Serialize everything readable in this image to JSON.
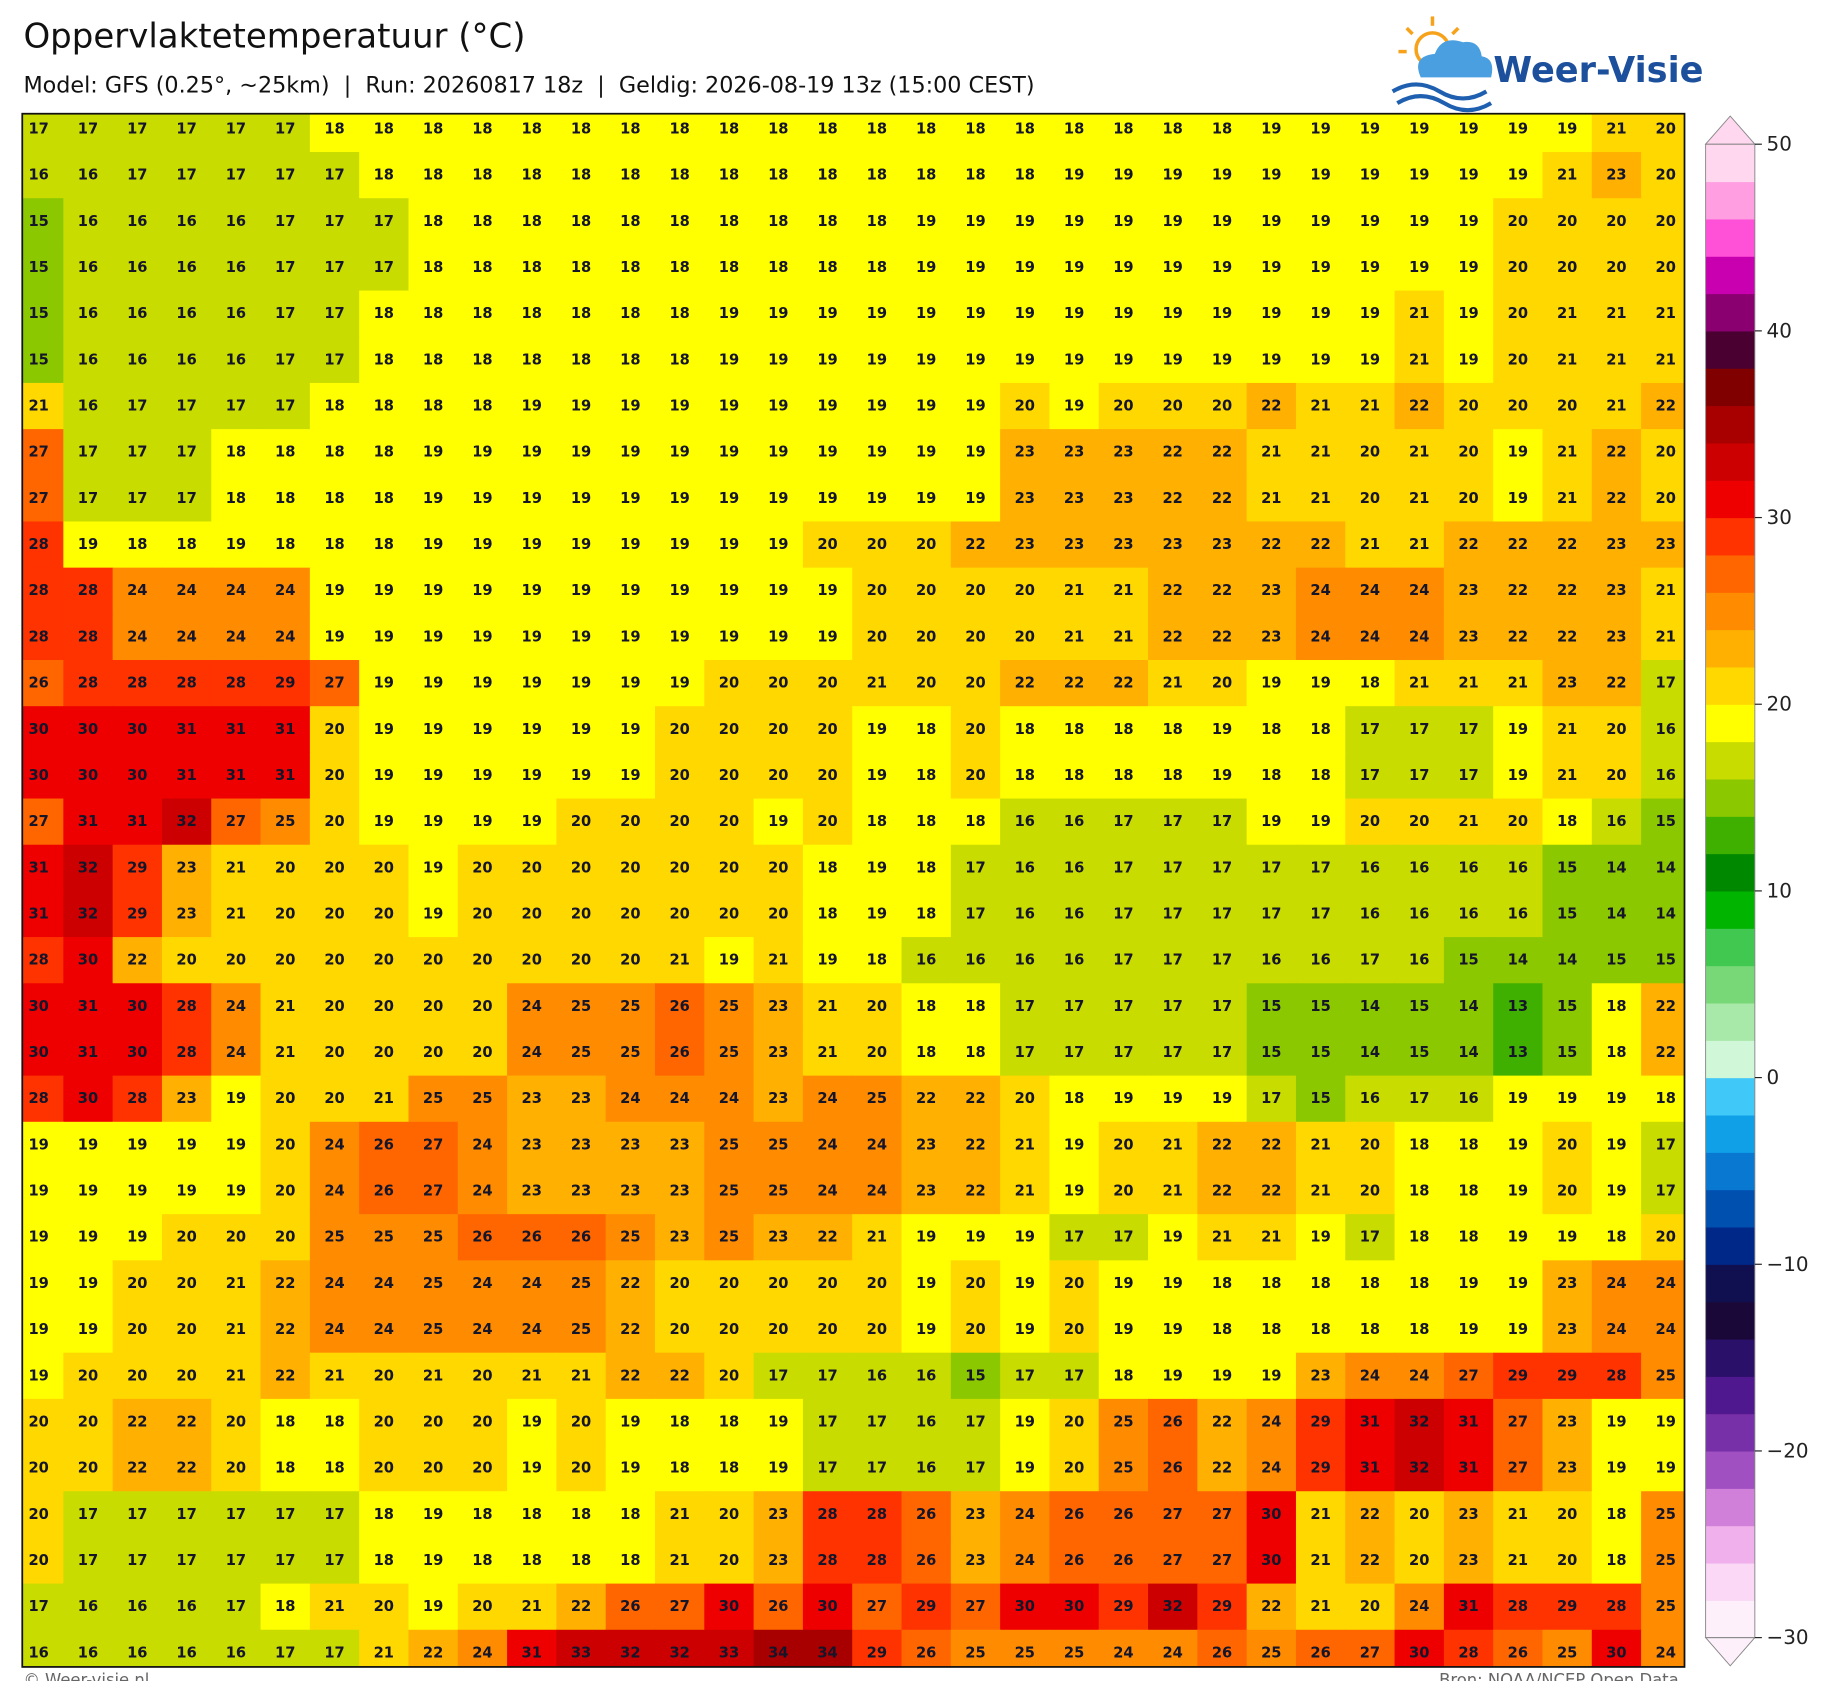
{
  "header": {
    "title": "Oppervlaktetemperatuur (°C)",
    "subtitle": "Model: GFS (0.25°, ~25km)  |  Run: 20260817 18z  |  Geldig: 2026-08-19 13z (15:00 CEST)"
  },
  "logo": {
    "text": "Weer-Visie"
  },
  "map": {
    "values": [
      [
        17,
        17,
        17,
        17,
        17,
        17,
        18,
        18,
        18,
        18,
        18,
        18,
        18,
        18,
        18,
        18,
        18,
        18,
        18,
        18,
        18,
        18,
        18,
        18,
        18,
        19,
        19,
        19,
        19,
        19,
        19,
        19,
        21,
        20
      ],
      [
        16,
        16,
        17,
        17,
        17,
        17,
        17,
        18,
        18,
        18,
        18,
        18,
        18,
        18,
        18,
        18,
        18,
        18,
        18,
        18,
        18,
        19,
        19,
        19,
        19,
        19,
        19,
        19,
        19,
        19,
        19,
        21,
        23,
        20
      ],
      [
        15,
        16,
        16,
        16,
        16,
        17,
        17,
        17,
        18,
        18,
        18,
        18,
        18,
        18,
        18,
        18,
        18,
        18,
        19,
        19,
        19,
        19,
        19,
        19,
        19,
        19,
        19,
        19,
        19,
        19,
        20,
        20,
        20,
        20
      ],
      [
        15,
        16,
        16,
        16,
        16,
        17,
        17,
        17,
        18,
        18,
        18,
        18,
        18,
        18,
        18,
        18,
        18,
        18,
        19,
        19,
        19,
        19,
        19,
        19,
        19,
        19,
        19,
        19,
        19,
        19,
        20,
        20,
        20,
        20
      ],
      [
        15,
        16,
        16,
        16,
        16,
        17,
        17,
        18,
        18,
        18,
        18,
        18,
        18,
        18,
        19,
        19,
        19,
        19,
        19,
        19,
        19,
        19,
        19,
        19,
        19,
        19,
        19,
        19,
        21,
        19,
        20,
        21,
        21,
        21
      ],
      [
        15,
        16,
        16,
        16,
        16,
        17,
        17,
        18,
        18,
        18,
        18,
        18,
        18,
        18,
        19,
        19,
        19,
        19,
        19,
        19,
        19,
        19,
        19,
        19,
        19,
        19,
        19,
        19,
        21,
        19,
        20,
        21,
        21,
        21
      ],
      [
        21,
        16,
        17,
        17,
        17,
        17,
        18,
        18,
        18,
        18,
        19,
        19,
        19,
        19,
        19,
        19,
        19,
        19,
        19,
        19,
        20,
        19,
        20,
        20,
        20,
        22,
        21,
        21,
        22,
        20,
        20,
        20,
        21,
        22
      ],
      [
        27,
        17,
        17,
        17,
        18,
        18,
        18,
        18,
        19,
        19,
        19,
        19,
        19,
        19,
        19,
        19,
        19,
        19,
        19,
        19,
        23,
        23,
        23,
        22,
        22,
        21,
        21,
        20,
        21,
        20,
        19,
        21,
        22,
        20
      ],
      [
        27,
        17,
        17,
        17,
        18,
        18,
        18,
        18,
        19,
        19,
        19,
        19,
        19,
        19,
        19,
        19,
        19,
        19,
        19,
        19,
        23,
        23,
        23,
        22,
        22,
        21,
        21,
        20,
        21,
        20,
        19,
        21,
        22,
        20
      ],
      [
        28,
        19,
        18,
        18,
        19,
        18,
        18,
        18,
        19,
        19,
        19,
        19,
        19,
        19,
        19,
        19,
        20,
        20,
        20,
        22,
        23,
        23,
        23,
        23,
        23,
        22,
        22,
        21,
        21,
        22,
        22,
        22,
        23,
        23
      ],
      [
        28,
        28,
        24,
        24,
        24,
        24,
        19,
        19,
        19,
        19,
        19,
        19,
        19,
        19,
        19,
        19,
        19,
        20,
        20,
        20,
        20,
        21,
        21,
        22,
        22,
        23,
        24,
        24,
        24,
        23,
        22,
        22,
        23,
        21
      ],
      [
        28,
        28,
        24,
        24,
        24,
        24,
        19,
        19,
        19,
        19,
        19,
        19,
        19,
        19,
        19,
        19,
        19,
        20,
        20,
        20,
        20,
        21,
        21,
        22,
        22,
        23,
        24,
        24,
        24,
        23,
        22,
        22,
        23,
        21
      ],
      [
        26,
        28,
        28,
        28,
        28,
        29,
        27,
        19,
        19,
        19,
        19,
        19,
        19,
        19,
        20,
        20,
        20,
        21,
        20,
        20,
        22,
        22,
        22,
        21,
        20,
        19,
        19,
        18,
        21,
        21,
        21,
        23,
        22,
        17
      ],
      [
        30,
        30,
        30,
        31,
        31,
        31,
        20,
        19,
        19,
        19,
        19,
        19,
        19,
        20,
        20,
        20,
        20,
        19,
        18,
        20,
        18,
        18,
        18,
        18,
        19,
        18,
        18,
        17,
        17,
        17,
        19,
        21,
        20,
        16
      ],
      [
        30,
        30,
        30,
        31,
        31,
        31,
        20,
        19,
        19,
        19,
        19,
        19,
        19,
        20,
        20,
        20,
        20,
        19,
        18,
        20,
        18,
        18,
        18,
        18,
        19,
        18,
        18,
        17,
        17,
        17,
        19,
        21,
        20,
        16
      ],
      [
        27,
        31,
        31,
        32,
        27,
        25,
        20,
        19,
        19,
        19,
        19,
        20,
        20,
        20,
        20,
        19,
        20,
        18,
        18,
        18,
        16,
        16,
        17,
        17,
        17,
        19,
        19,
        20,
        20,
        21,
        20,
        18,
        16,
        15
      ],
      [
        31,
        32,
        29,
        23,
        21,
        20,
        20,
        20,
        19,
        20,
        20,
        20,
        20,
        20,
        20,
        20,
        18,
        19,
        18,
        17,
        16,
        16,
        17,
        17,
        17,
        17,
        17,
        16,
        16,
        16,
        16,
        15,
        14,
        14
      ],
      [
        31,
        32,
        29,
        23,
        21,
        20,
        20,
        20,
        19,
        20,
        20,
        20,
        20,
        20,
        20,
        20,
        18,
        19,
        18,
        17,
        16,
        16,
        17,
        17,
        17,
        17,
        17,
        16,
        16,
        16,
        16,
        15,
        14,
        14
      ],
      [
        28,
        30,
        22,
        20,
        20,
        20,
        20,
        20,
        20,
        20,
        20,
        20,
        20,
        21,
        19,
        21,
        19,
        18,
        16,
        16,
        16,
        16,
        17,
        17,
        17,
        16,
        16,
        17,
        16,
        15,
        14,
        14,
        15,
        15
      ],
      [
        30,
        31,
        30,
        28,
        24,
        21,
        20,
        20,
        20,
        20,
        24,
        25,
        25,
        26,
        25,
        23,
        21,
        20,
        18,
        18,
        17,
        17,
        17,
        17,
        17,
        15,
        15,
        14,
        15,
        14,
        13,
        15,
        18,
        22
      ],
      [
        30,
        31,
        30,
        28,
        24,
        21,
        20,
        20,
        20,
        20,
        24,
        25,
        25,
        26,
        25,
        23,
        21,
        20,
        18,
        18,
        17,
        17,
        17,
        17,
        17,
        15,
        15,
        14,
        15,
        14,
        13,
        15,
        18,
        22
      ],
      [
        28,
        30,
        28,
        23,
        19,
        20,
        20,
        21,
        25,
        25,
        23,
        23,
        24,
        24,
        24,
        23,
        24,
        25,
        22,
        22,
        20,
        18,
        19,
        19,
        19,
        17,
        15,
        16,
        17,
        16,
        19,
        19,
        19,
        18
      ],
      [
        19,
        19,
        19,
        19,
        19,
        20,
        24,
        26,
        27,
        24,
        23,
        23,
        23,
        23,
        25,
        25,
        24,
        24,
        23,
        22,
        21,
        19,
        20,
        21,
        22,
        22,
        21,
        20,
        18,
        18,
        19,
        20,
        19,
        17
      ],
      [
        19,
        19,
        19,
        19,
        19,
        20,
        24,
        26,
        27,
        24,
        23,
        23,
        23,
        23,
        25,
        25,
        24,
        24,
        23,
        22,
        21,
        19,
        20,
        21,
        22,
        22,
        21,
        20,
        18,
        18,
        19,
        20,
        19,
        17
      ],
      [
        19,
        19,
        19,
        20,
        20,
        20,
        25,
        25,
        25,
        26,
        26,
        26,
        25,
        23,
        25,
        23,
        22,
        21,
        19,
        19,
        19,
        17,
        17,
        19,
        21,
        21,
        19,
        17,
        18,
        18,
        19,
        19,
        18,
        20
      ],
      [
        19,
        19,
        20,
        20,
        21,
        22,
        24,
        24,
        25,
        24,
        24,
        25,
        22,
        20,
        20,
        20,
        20,
        20,
        19,
        20,
        19,
        20,
        19,
        19,
        18,
        18,
        18,
        18,
        18,
        19,
        19,
        23,
        24,
        24
      ],
      [
        19,
        19,
        20,
        20,
        21,
        22,
        24,
        24,
        25,
        24,
        24,
        25,
        22,
        20,
        20,
        20,
        20,
        20,
        19,
        20,
        19,
        20,
        19,
        19,
        18,
        18,
        18,
        18,
        18,
        19,
        19,
        23,
        24,
        24
      ],
      [
        19,
        20,
        20,
        20,
        21,
        22,
        21,
        20,
        21,
        20,
        21,
        21,
        22,
        22,
        20,
        17,
        17,
        16,
        16,
        15,
        17,
        17,
        18,
        19,
        19,
        19,
        23,
        24,
        24,
        27,
        29,
        29,
        28,
        25
      ],
      [
        20,
        20,
        22,
        22,
        20,
        18,
        18,
        20,
        20,
        20,
        19,
        20,
        19,
        18,
        18,
        19,
        17,
        17,
        16,
        17,
        19,
        20,
        25,
        26,
        22,
        24,
        29,
        31,
        32,
        31,
        27,
        23,
        19,
        19
      ],
      [
        20,
        20,
        22,
        22,
        20,
        18,
        18,
        20,
        20,
        20,
        19,
        20,
        19,
        18,
        18,
        19,
        17,
        17,
        16,
        17,
        19,
        20,
        25,
        26,
        22,
        24,
        29,
        31,
        32,
        31,
        27,
        23,
        19,
        19
      ],
      [
        20,
        17,
        17,
        17,
        17,
        17,
        17,
        18,
        19,
        18,
        18,
        18,
        18,
        21,
        20,
        23,
        28,
        28,
        26,
        23,
        24,
        26,
        26,
        27,
        27,
        30,
        21,
        22,
        20,
        23,
        21,
        20,
        18,
        25
      ],
      [
        20,
        17,
        17,
        17,
        17,
        17,
        17,
        18,
        19,
        18,
        18,
        18,
        18,
        21,
        20,
        23,
        28,
        28,
        26,
        23,
        24,
        26,
        26,
        27,
        27,
        30,
        21,
        22,
        20,
        23,
        21,
        20,
        18,
        25
      ],
      [
        17,
        16,
        16,
        16,
        17,
        18,
        21,
        20,
        19,
        20,
        21,
        22,
        26,
        27,
        30,
        26,
        30,
        27,
        29,
        27,
        30,
        30,
        29,
        32,
        29,
        22,
        21,
        20,
        24,
        31,
        28,
        29,
        28,
        25
      ],
      [
        16,
        16,
        16,
        16,
        16,
        17,
        17,
        21,
        22,
        24,
        31,
        33,
        32,
        32,
        33,
        34,
        34,
        29,
        26,
        25,
        25,
        25,
        24,
        24,
        26,
        25,
        26,
        27,
        30,
        28,
        26,
        25,
        30,
        24
      ]
    ]
  },
  "colorbar": {
    "lim": [
      -30,
      50
    ],
    "ticks": [
      {
        "value": -30,
        "label": "−30"
      },
      {
        "value": -20,
        "label": "−20"
      },
      {
        "value": -10,
        "label": "−10"
      },
      0,
      10,
      20,
      30,
      40,
      50
    ],
    "colors": [
      "#fdf0fb",
      "#fad8f6",
      "#f0b0ec",
      "#d080d8",
      "#a050c0",
      "#7830a8",
      "#50188e",
      "#2a1068",
      "#1a0838",
      "#101050",
      "#002888",
      "#0050b0",
      "#0878d0",
      "#10a0e8",
      "#40c8f8",
      "#d0f8d8",
      "#a8e8a8",
      "#78d878",
      "#40c850",
      "#00b400",
      "#008800",
      "#40b000",
      "#8cc800",
      "#c8dc00",
      "#ffff00",
      "#ffd800",
      "#ffb000",
      "#ff8c00",
      "#ff6600",
      "#ff3300",
      "#ee0000",
      "#cc0000",
      "#a80000",
      "#800000",
      "#4a0030",
      "#8a0070",
      "#c800b0",
      "#ff50d8",
      "#ff9ee0",
      "#ffd8f0"
    ]
  },
  "footer": {
    "left": "© Weer-visie.nl",
    "right": "Bron: NOAA/NCEP Open Data"
  }
}
